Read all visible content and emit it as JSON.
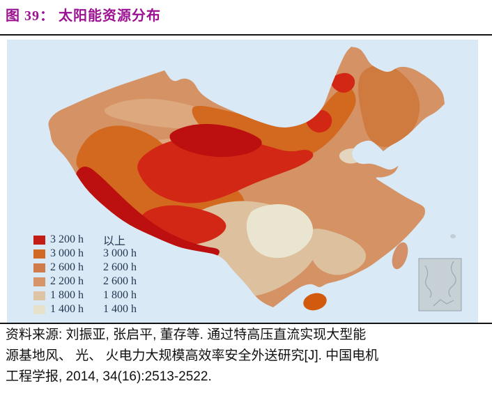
{
  "title": {
    "label": "图 39： 太阳能资源分布"
  },
  "map": {
    "sea_color": "#d9e9f6",
    "region_colors": {
      "dark_red": "#bc1010",
      "red": "#d22714",
      "orange": "#d2691e",
      "orange_ne": "#cf7a3e",
      "salmon_base": "#d59264",
      "salmon_light": "#dda87e",
      "tan": "#ddc19e",
      "tan_pocket": "#e3d5be",
      "cream": "#eae5d1",
      "hainan": "#d25a0e",
      "taiwan": "#d39068",
      "island_dot": "#c2cdd6",
      "inset_fill": "#c7d0d5",
      "inset_stroke": "#93a3ad",
      "inset_lines": "#98aab4"
    },
    "legend": {
      "rows": [
        {
          "color": "#c41c16",
          "col1": "3 200 h",
          "col2": "以上"
        },
        {
          "color": "#d06a24",
          "col1": "3 000 h",
          "col2": "3 000 h"
        },
        {
          "color": "#cf7c4a",
          "col1": "2 600 h",
          "col2": "2 600 h"
        },
        {
          "color": "#d69468",
          "col1": "2 200 h",
          "col2": "2 600 h"
        },
        {
          "color": "#dec3a4",
          "col1": "1 800 h",
          "col2": "1 800 h"
        },
        {
          "color": "#e6e1cb",
          "col1": "1 400 h",
          "col2": "1 400 h"
        }
      ]
    }
  },
  "source": {
    "line1": "资料来源: 刘振亚, 张启平, 董存等. 通过特高压直流实现大型能",
    "line2": "源基地风、 光、 火电力大规模高效率安全外送研究[J]. 中国电机",
    "line3": "工程学报, 2014, 34(16):2513-2522."
  }
}
